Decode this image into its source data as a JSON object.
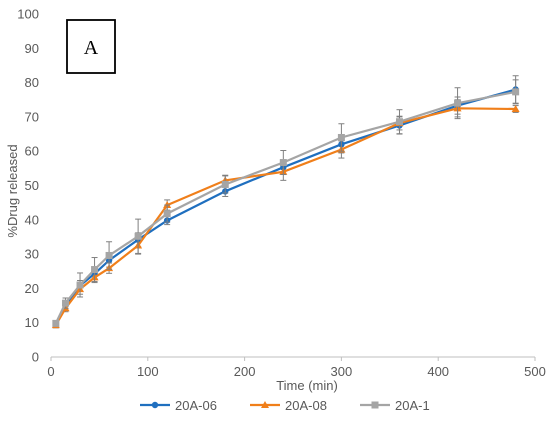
{
  "chart_data": {
    "type": "line",
    "panel_label": "A",
    "xlabel": "Time (min)",
    "ylabel": "%Drug released",
    "xlim": [
      0,
      500
    ],
    "ylim": [
      0,
      100
    ],
    "x_ticks": [
      "0",
      "100",
      "200",
      "300",
      "400",
      "500"
    ],
    "y_ticks": [
      "0",
      "10",
      "20",
      "30",
      "40",
      "50",
      "60",
      "70",
      "80",
      "90",
      "100"
    ],
    "grid": "off",
    "legend_position": "bottom",
    "series": [
      {
        "name": "20A-06",
        "color": "#1f6fbf",
        "marker": "circle",
        "points": [
          {
            "x": 5,
            "y": 9.5,
            "err": 0.8
          },
          {
            "x": 15,
            "y": 15.2,
            "err": 1.0
          },
          {
            "x": 30,
            "y": 20.8,
            "err": 1.5
          },
          {
            "x": 45,
            "y": 24.3,
            "err": 1.5
          },
          {
            "x": 60,
            "y": 28.2,
            "err": 2.0
          },
          {
            "x": 90,
            "y": 34.2,
            "err": 2.0
          },
          {
            "x": 120,
            "y": 39.8,
            "err": 1.2
          },
          {
            "x": 180,
            "y": 48.3,
            "err": 1.5
          },
          {
            "x": 240,
            "y": 55.3,
            "err": 2.0
          },
          {
            "x": 300,
            "y": 62.0,
            "err": 2.5
          },
          {
            "x": 360,
            "y": 67.5,
            "err": 2.5
          },
          {
            "x": 420,
            "y": 73.3,
            "err": 2.5
          },
          {
            "x": 480,
            "y": 78.0,
            "err": 4.0
          }
        ]
      },
      {
        "name": "20A-08",
        "color": "#f07f1a",
        "marker": "triangle",
        "points": [
          {
            "x": 5,
            "y": 9.3,
            "err": 0.8
          },
          {
            "x": 15,
            "y": 14.2,
            "err": 1.0
          },
          {
            "x": 30,
            "y": 19.8,
            "err": 1.5
          },
          {
            "x": 45,
            "y": 23.2,
            "err": 1.5
          },
          {
            "x": 60,
            "y": 25.9,
            "err": 1.5
          },
          {
            "x": 90,
            "y": 32.5,
            "err": 2.5
          },
          {
            "x": 120,
            "y": 44.3,
            "err": 1.5
          },
          {
            "x": 180,
            "y": 51.5,
            "err": 1.5
          },
          {
            "x": 240,
            "y": 54.0,
            "err": 2.5
          },
          {
            "x": 300,
            "y": 60.5,
            "err": 2.5
          },
          {
            "x": 360,
            "y": 68.2,
            "err": 2.0
          },
          {
            "x": 420,
            "y": 72.5,
            "err": 2.5
          },
          {
            "x": 480,
            "y": 72.3,
            "err": 1.0
          }
        ]
      },
      {
        "name": "20A-1",
        "color": "#a5a5a5",
        "marker": "square",
        "points": [
          {
            "x": 5,
            "y": 9.8,
            "err": 0.8
          },
          {
            "x": 15,
            "y": 15.7,
            "err": 1.5
          },
          {
            "x": 30,
            "y": 21.0,
            "err": 3.5
          },
          {
            "x": 45,
            "y": 25.5,
            "err": 3.5
          },
          {
            "x": 60,
            "y": 29.6,
            "err": 4.0
          },
          {
            "x": 90,
            "y": 35.2,
            "err": 5.0
          },
          {
            "x": 120,
            "y": 41.8,
            "err": 2.5
          },
          {
            "x": 180,
            "y": 50.3,
            "err": 2.5
          },
          {
            "x": 240,
            "y": 56.7,
            "err": 3.5
          },
          {
            "x": 300,
            "y": 64.0,
            "err": 4.0
          },
          {
            "x": 360,
            "y": 68.6,
            "err": 3.5
          },
          {
            "x": 420,
            "y": 74.0,
            "err": 4.5
          },
          {
            "x": 480,
            "y": 77.3,
            "err": 3.5
          }
        ]
      }
    ]
  }
}
